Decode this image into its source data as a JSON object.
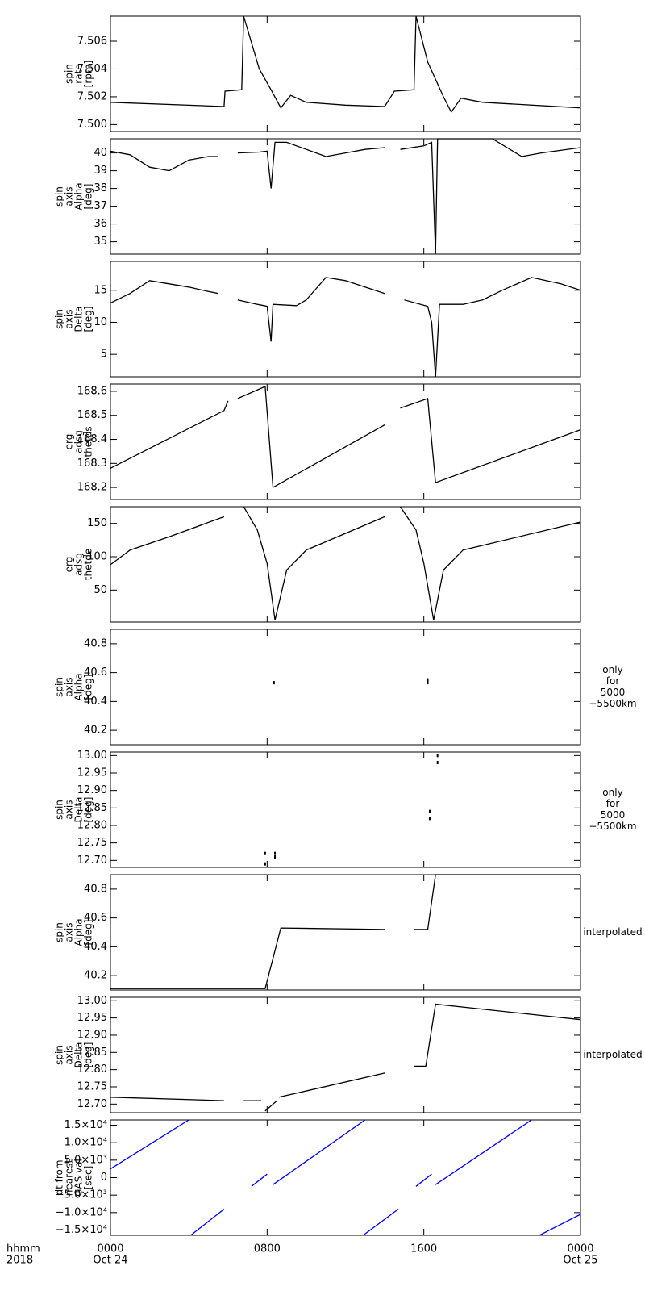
{
  "chart_data": [
    {
      "type": "line",
      "ylabel": [
        "spin",
        "rate",
        "[rpm]"
      ],
      "ylim": [
        7.4995,
        7.5078
      ],
      "yticks": [
        {
          "value": 7.5,
          "label": "7.500"
        },
        {
          "value": 7.502,
          "label": "7.502"
        },
        {
          "value": 7.504,
          "label": "7.504"
        },
        {
          "value": 7.506,
          "label": "7.506"
        }
      ],
      "series": [
        {
          "color": "#000000",
          "x": [
            0,
            5.8,
            5.85,
            6.7,
            6.8,
            7.6,
            8.2,
            8.7,
            9.2,
            10,
            12,
            14,
            14.5,
            15.5,
            15.6,
            16.2,
            17,
            17.4,
            17.9,
            19,
            24
          ],
          "values": [
            7.5016,
            7.5013,
            7.5024,
            7.5025,
            7.5078,
            7.504,
            7.5025,
            7.5012,
            7.5021,
            7.5016,
            7.5014,
            7.5013,
            7.5024,
            7.5025,
            7.5078,
            7.5045,
            7.502,
            7.5009,
            7.5019,
            7.5016,
            7.5012
          ]
        }
      ]
    },
    {
      "type": "line",
      "ylabel": [
        "spin",
        "axis",
        "Alpha",
        "[deg]"
      ],
      "ylim": [
        34.3,
        40.8
      ],
      "yticks": [
        35,
        36,
        37,
        38,
        39,
        40
      ],
      "series": [
        {
          "color": "#000000",
          "x": [
            0,
            1,
            2,
            3,
            4,
            5,
            5.5,
            6,
            6.5,
            7.6,
            8,
            8.2,
            8.4,
            9,
            10,
            11,
            12,
            13,
            14,
            14.4,
            14.8,
            16,
            16.4,
            16.6,
            16.7,
            18,
            19.5,
            21,
            22,
            24
          ],
          "values": [
            40.1,
            39.9,
            39.2,
            39.0,
            39.6,
            39.8,
            39.8,
            null,
            40.0,
            40.05,
            40.1,
            38.0,
            40.6,
            40.6,
            40.2,
            39.8,
            40.0,
            40.2,
            40.3,
            null,
            40.2,
            40.4,
            40.6,
            34.3,
            40.8,
            40.8,
            40.8,
            39.8,
            40.0,
            40.3
          ]
        }
      ]
    },
    {
      "type": "line",
      "ylabel": [
        "spin",
        "axis",
        "Delta",
        "[deg]"
      ],
      "ylim": [
        1.5,
        19.5
      ],
      "yticks": [
        5,
        10,
        15
      ],
      "series": [
        {
          "color": "#000000",
          "x": [
            0,
            1,
            2,
            3,
            4,
            5,
            5.5,
            6,
            6.5,
            7.5,
            8,
            8.2,
            8.3,
            9.5,
            10,
            11,
            12,
            13,
            14,
            14.5,
            15,
            16.2,
            16.4,
            16.6,
            16.8,
            18,
            19,
            20,
            21.5,
            23,
            24
          ],
          "values": [
            13,
            14.5,
            16.5,
            16,
            15.5,
            14.8,
            14.5,
            null,
            13.5,
            12.8,
            12.5,
            7,
            12.8,
            12.6,
            13.5,
            17,
            16.5,
            15.5,
            14.5,
            null,
            13.5,
            12.5,
            10,
            1.5,
            12.8,
            12.8,
            13.5,
            15,
            17,
            16,
            15
          ]
        }
      ]
    },
    {
      "type": "line",
      "ylabel": [
        "erg",
        "adsg",
        "thetds"
      ],
      "ylim": [
        168.15,
        168.63
      ],
      "yticks": [
        168.2,
        168.3,
        168.4,
        168.5,
        168.6
      ],
      "series": [
        {
          "color": "#000000",
          "x": [
            0,
            5.8,
            6,
            6.2,
            6.5,
            7.9,
            8.3,
            14,
            14.4,
            14.8,
            16.2,
            16.6,
            24
          ],
          "values": [
            168.28,
            168.52,
            168.56,
            null,
            168.57,
            168.62,
            168.2,
            168.46,
            null,
            168.53,
            168.57,
            168.22,
            168.44
          ]
        }
      ]
    },
    {
      "type": "line",
      "ylabel": [
        "erg",
        "adsg",
        "thetde"
      ],
      "ylim": [
        2,
        175
      ],
      "yticks": [
        50,
        100,
        150
      ],
      "series": [
        {
          "color": "#000000",
          "x": [
            0,
            1,
            3,
            5.8,
            6.3,
            6.8,
            7.5,
            8,
            8.4,
            9,
            10,
            14,
            14.4,
            14.8,
            15.6,
            16,
            16.5,
            17,
            18,
            24
          ],
          "values": [
            88,
            110,
            130,
            160,
            null,
            175,
            140,
            90,
            5,
            80,
            110,
            160,
            null,
            175,
            140,
            90,
            5,
            80,
            110,
            152
          ]
        }
      ]
    },
    {
      "type": "scatter",
      "ylabel": [
        "spin",
        "axis",
        "Alpha",
        "[deg]"
      ],
      "ylim": [
        40.1,
        40.9
      ],
      "yticks": [
        40.2,
        40.4,
        40.6,
        40.8
      ],
      "note": [
        "only",
        "for",
        "5000",
        "−5500km"
      ],
      "series": [
        {
          "color": "#000000",
          "x": [
            8.35,
            16.2,
            16.2
          ],
          "values": [
            40.53,
            40.53,
            40.55
          ]
        }
      ]
    },
    {
      "type": "scatter",
      "ylabel": [
        "spin",
        "axis",
        "Delta",
        "[deg]"
      ],
      "ylim": [
        12.68,
        13.01
      ],
      "yticks": [
        {
          "value": 12.7,
          "label": "12.70"
        },
        12.75,
        {
          "value": 12.8,
          "label": "12.80"
        },
        12.85,
        {
          "value": 12.9,
          "label": "12.90"
        },
        12.95,
        {
          "value": 13.0,
          "label": "13.00"
        }
      ],
      "note": [
        "only",
        "for",
        "5000",
        "−5500km"
      ],
      "series": [
        {
          "color": "#000000",
          "x": [
            7.9,
            7.9,
            8.4,
            8.4,
            16.3,
            16.3,
            16.7,
            16.7
          ],
          "values": [
            12.69,
            12.72,
            12.71,
            12.72,
            12.82,
            12.84,
            12.98,
            13.0
          ]
        }
      ]
    },
    {
      "type": "line",
      "ylabel": [
        "spin",
        "axis",
        "Alpha",
        "[deg]"
      ],
      "ylim": [
        40.1,
        40.9
      ],
      "yticks": [
        40.2,
        40.4,
        40.6,
        40.8
      ],
      "note": [
        "interpolated"
      ],
      "series": [
        {
          "color": "#000000",
          "x": [
            0,
            7.9,
            8.7,
            14,
            14.7,
            15.5,
            16.2,
            16.6,
            24
          ],
          "values": [
            40.11,
            40.11,
            40.53,
            40.52,
            null,
            40.52,
            40.52,
            40.9,
            40.9
          ]
        }
      ]
    },
    {
      "type": "line",
      "ylabel": [
        "spin",
        "axis",
        "Delta",
        "[deg]"
      ],
      "ylim": [
        12.675,
        13.01
      ],
      "yticks": [
        {
          "value": 12.7,
          "label": "12.70"
        },
        12.75,
        {
          "value": 12.8,
          "label": "12.80"
        },
        12.85,
        {
          "value": 12.9,
          "label": "12.90"
        },
        12.95,
        {
          "value": 13.0,
          "label": "13.00"
        }
      ],
      "note": [
        "interpolated"
      ],
      "series": [
        {
          "color": "#000000",
          "x": [
            0,
            5.8,
            6.3,
            6.8,
            7.7,
            7.8,
            7.9,
            8.5,
            8.55,
            8.6,
            14,
            14.7,
            15.5,
            16.1,
            16.6,
            24
          ],
          "values": [
            12.72,
            12.71,
            null,
            12.71,
            12.71,
            null,
            12.68,
            12.71,
            null,
            12.72,
            12.79,
            null,
            12.81,
            12.81,
            12.99,
            12.945
          ]
        }
      ]
    },
    {
      "type": "line",
      "ylabel": [
        "dt from",
        "nearest",
        "GAS val",
        "[sec]"
      ],
      "ylim": [
        -16500,
        16500
      ],
      "yticks": [
        {
          "value": -15000,
          "label": "−1.5×10⁴"
        },
        {
          "value": -10000,
          "label": "−1.0×10⁴"
        },
        {
          "value": -5000,
          "label": "−5.0×10³"
        },
        0,
        {
          "value": 5000,
          "label": "5.0×10³"
        },
        {
          "value": 10000,
          "label": "1.0×10⁴"
        },
        {
          "value": 15000,
          "label": "1.5×10⁴"
        }
      ],
      "xlim": [
        0,
        24
      ],
      "xlabel": [
        "hhmm",
        "2018"
      ],
      "xticks": [
        {
          "value": 0,
          "label": "0000"
        },
        {
          "value": 8,
          "label": "0800"
        },
        {
          "value": 16,
          "label": "1600"
        },
        {
          "value": 24,
          "label": "0000"
        }
      ],
      "xtick_dates": [
        "Oct 24",
        null,
        null,
        "Oct 25"
      ],
      "series": [
        {
          "color": "#0000ff",
          "x": [
            0,
            4,
            4.05,
            4.1,
            5.8,
            6.5,
            7.2,
            8,
            8.15,
            8.3,
            13,
            12.95,
            12.9,
            14.7,
            15.1,
            15.6,
            16.4,
            16.5,
            16.6,
            21.5,
            21.7,
            21.9,
            24
          ],
          "values": [
            2500,
            16500,
            null,
            -16500,
            -9000,
            null,
            -2500,
            1000,
            null,
            -2000,
            16500,
            null,
            -16500,
            -9000,
            null,
            -2500,
            1000,
            null,
            -2000,
            16500,
            null,
            -16500,
            -10500
          ]
        }
      ]
    }
  ]
}
